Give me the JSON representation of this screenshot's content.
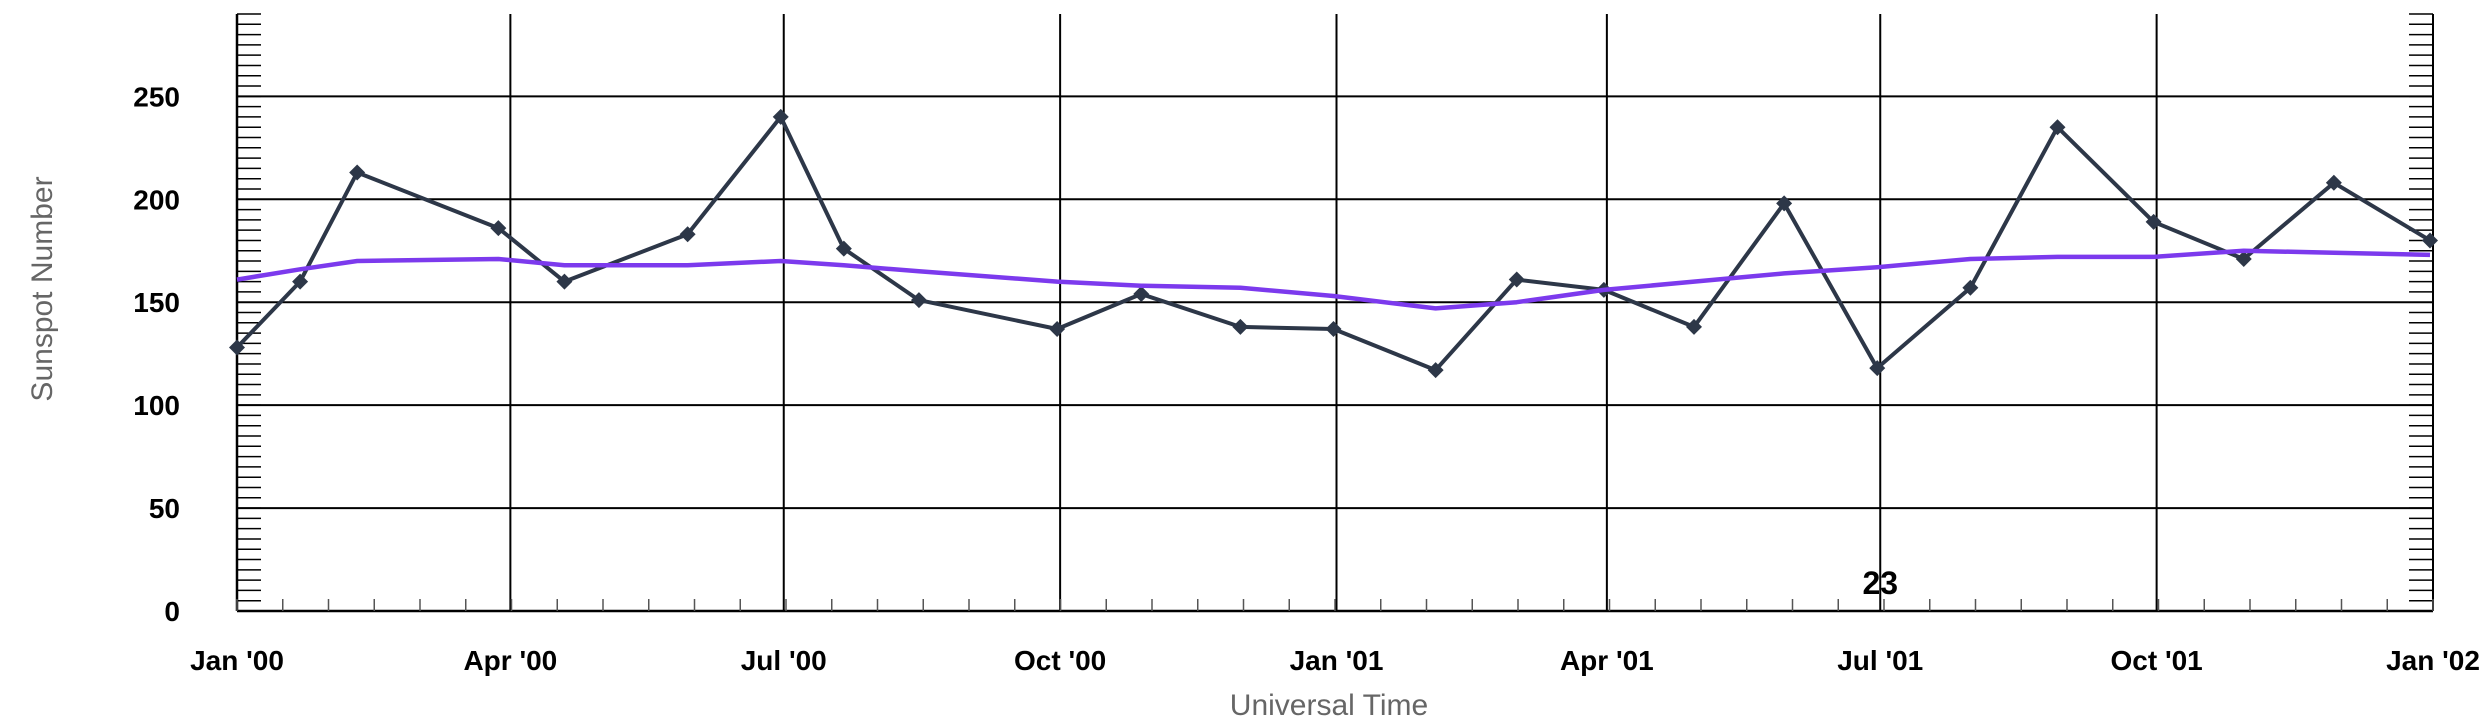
{
  "chart_data": {
    "type": "line",
    "title": "",
    "xlabel": "Universal Time",
    "ylabel": "Sunspot Number",
    "ylim": [
      0,
      290
    ],
    "xlim": [
      "2000-01-01",
      "2002-01-01"
    ],
    "y_ticks": [
      "0",
      "50",
      "100",
      "150",
      "200",
      "250"
    ],
    "x_ticks": [
      {
        "label": "Jan '00",
        "date": "2000-01-01"
      },
      {
        "label": "Apr '00",
        "date": "2000-04-01"
      },
      {
        "label": "Jul '00",
        "date": "2000-07-01"
      },
      {
        "label": "Oct '00",
        "date": "2000-10-01"
      },
      {
        "label": "Jan '01",
        "date": "2001-01-01"
      },
      {
        "label": "Apr '01",
        "date": "2001-04-01"
      },
      {
        "label": "Jul '01",
        "date": "2001-07-01"
      },
      {
        "label": "Oct '01",
        "date": "2001-10-01"
      },
      {
        "label": "Jan '02",
        "date": "2002-01-01"
      }
    ],
    "grid": true,
    "series": [
      {
        "color": "#2d3748",
        "marker": "diamond",
        "x": [
          "2000-01-01",
          "2000-01-22",
          "2000-02-10",
          "2000-03-28",
          "2000-04-19",
          "2000-05-30",
          "2000-06-30",
          "2000-07-21",
          "2000-08-15",
          "2000-09-30",
          "2000-10-28",
          "2000-11-30",
          "2000-12-31",
          "2001-02-03",
          "2001-03-02",
          "2001-03-31",
          "2001-04-30",
          "2001-05-30",
          "2001-06-30",
          "2001-07-31",
          "2001-08-29",
          "2001-09-30",
          "2001-10-30",
          "2001-11-29",
          "2001-12-31"
        ],
        "values": [
          128,
          160,
          213,
          186,
          160,
          183,
          240,
          176,
          151,
          137,
          154,
          138,
          137,
          117,
          161,
          156,
          138,
          198,
          118,
          157,
          235,
          189,
          171,
          208,
          180
        ]
      },
      {
        "color": "#7c3aed",
        "marker": "none",
        "x": [
          "2000-01-01",
          "2000-01-22",
          "2000-02-10",
          "2000-03-28",
          "2000-04-19",
          "2000-05-30",
          "2000-06-30",
          "2000-07-21",
          "2000-08-15",
          "2000-09-30",
          "2000-10-28",
          "2000-11-30",
          "2000-12-31",
          "2001-02-03",
          "2001-03-02",
          "2001-03-31",
          "2001-04-30",
          "2001-05-30",
          "2001-06-30",
          "2001-07-31",
          "2001-08-29",
          "2001-09-30",
          "2001-10-30",
          "2001-11-29",
          "2001-12-31"
        ],
        "values": [
          161,
          166,
          170,
          171,
          168,
          168,
          170,
          168,
          165,
          160,
          158,
          157,
          153,
          147,
          150,
          156,
          160,
          164,
          167,
          171,
          172,
          172,
          175,
          174,
          173
        ]
      }
    ],
    "annotations": [
      {
        "text": "23",
        "date": "2001-07-01",
        "y": 14
      }
    ]
  }
}
